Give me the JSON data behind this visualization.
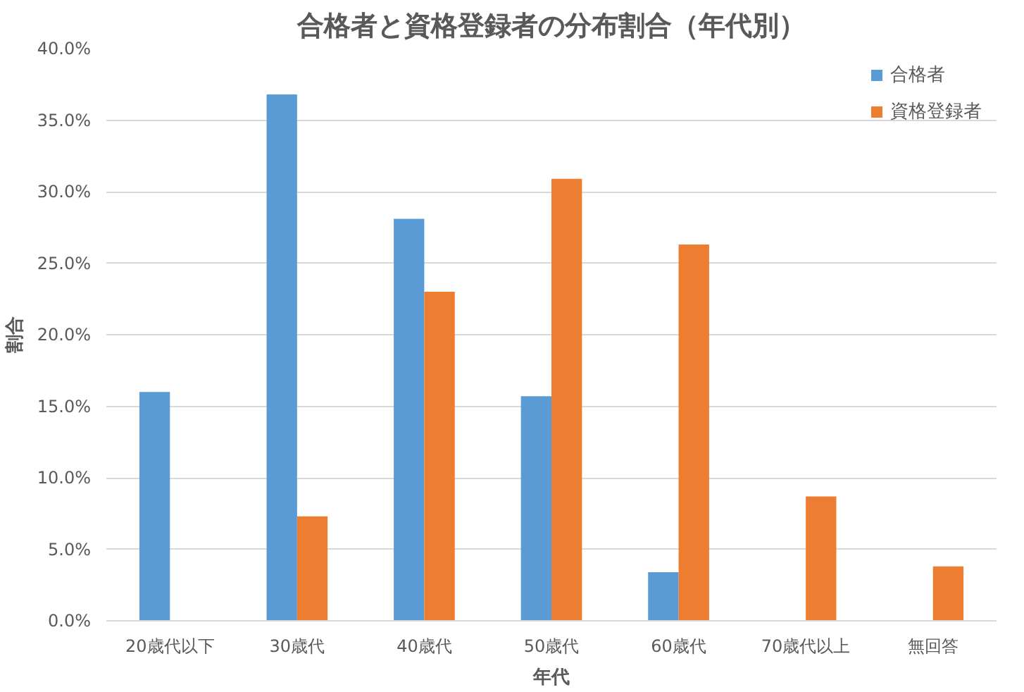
{
  "chart_data": {
    "type": "bar",
    "title": "合格者と資格登録者の分布割合（年代別）",
    "xlabel": "年代",
    "ylabel": "割合",
    "categories": [
      "20歳代以下",
      "30歳代",
      "40歳代",
      "50歳代",
      "60歳代",
      "70歳代以上",
      "無回答"
    ],
    "series": [
      {
        "name": "合格者",
        "color": "#5b9bd5",
        "values": [
          16.0,
          36.8,
          28.1,
          15.7,
          3.4,
          null,
          null
        ]
      },
      {
        "name": "資格登録者",
        "color": "#ed7d31",
        "values": [
          null,
          7.3,
          23.0,
          30.9,
          26.3,
          8.7,
          3.8
        ]
      }
    ],
    "ylim": [
      0,
      40
    ],
    "yticks": [
      {
        "value": 0,
        "label": "0.0%"
      },
      {
        "value": 5,
        "label": "5.0%"
      },
      {
        "value": 10,
        "label": "10.0%"
      },
      {
        "value": 15,
        "label": "15.0%"
      },
      {
        "value": 20,
        "label": "20.0%"
      },
      {
        "value": 25,
        "label": "25.0%"
      },
      {
        "value": 30,
        "label": "30.0%"
      },
      {
        "value": 35,
        "label": "35.0%"
      },
      {
        "value": 40,
        "label": "40.0%"
      }
    ],
    "grid": "y",
    "legend": "top right"
  }
}
